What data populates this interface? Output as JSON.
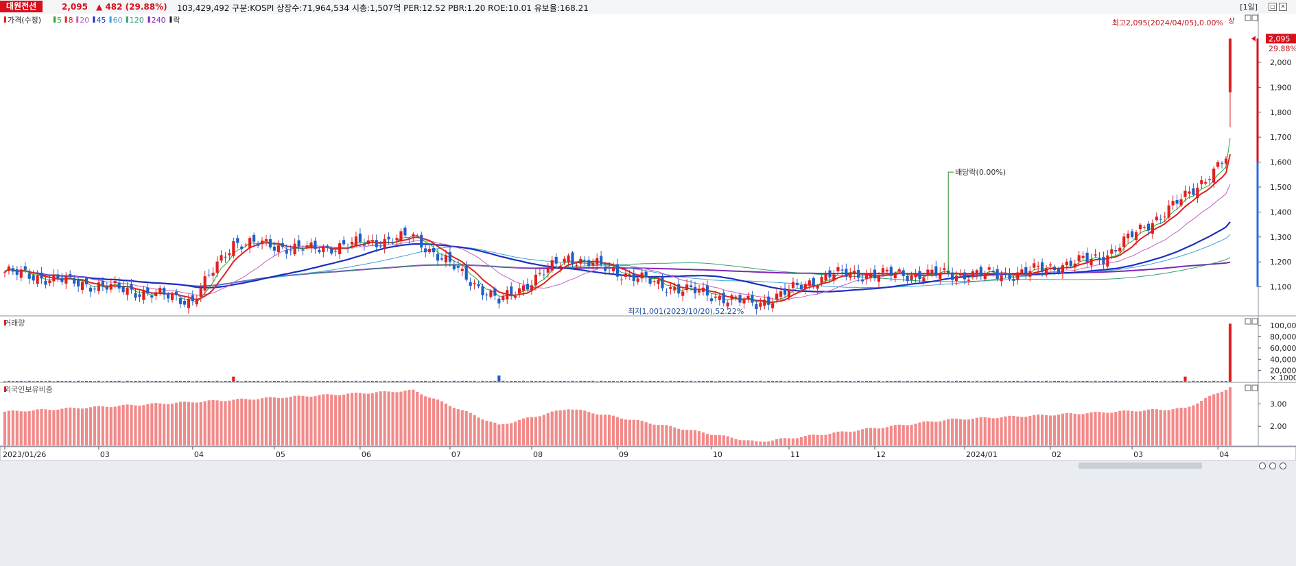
{
  "header": {
    "stock_name": "대원전선",
    "price": "2,095",
    "change": "▲ 482 (29.88%)",
    "info": "103,429,492  구분:KOSPI 상장수:71,964,534 시총:1,507억 PER:12.52 PBR:1.20 ROE:10.01 유보율:168.21",
    "period": "[1일]"
  },
  "colors": {
    "up": "#e02020",
    "down": "#1e5fc9",
    "ma5": "#2aa52a",
    "ma8": "#e02020",
    "ma20": "#c060c0",
    "ma45": "#1a2fbf",
    "ma60": "#3ba0d6",
    "ma120": "#33a070",
    "ma240": "#7b26b8",
    "volume_bar": "#e02020",
    "foreign_bar": "#f28a8a"
  },
  "chart_data": [
    {
      "type": "candlestick",
      "panel": "price",
      "legend": [
        "가격(수정)",
        "5",
        "8",
        "20",
        "45",
        "60",
        "120",
        "240",
        "락"
      ],
      "x_ticks": [
        "2023/01/26",
        "03",
        "04",
        "05",
        "06",
        "07",
        "08",
        "09",
        "10",
        "11",
        "12",
        "2024/01",
        "02",
        "03",
        "04"
      ],
      "y_ticks": [
        "2,000",
        "1,900",
        "1,800",
        "1,700",
        "1,600",
        "1,500",
        "1,400",
        "1,300",
        "1,200",
        "1,100"
      ],
      "ylim": [
        1000,
        2140
      ],
      "last_price_label": "2,095",
      "last_change_label": "29.88%",
      "annotations": {
        "high": "최고2,095(2024/04/05),0.00%",
        "high_tag": "상",
        "low": "최저1,001(2023/10/20),52.22%",
        "dividend": "배당락(0.00%)"
      },
      "key_points": [
        {
          "date": "2023/01/26",
          "close": 1160
        },
        {
          "date": "2023/03/15",
          "close": 1080
        },
        {
          "date": "2023/04/03",
          "close": 1045
        },
        {
          "date": "2023/04/17",
          "close": 1280
        },
        {
          "date": "2023/05/15",
          "close": 1250
        },
        {
          "date": "2023/06/20",
          "close": 1300
        },
        {
          "date": "2023/07/20",
          "close": 1040
        },
        {
          "date": "2023/08/14",
          "close": 1220
        },
        {
          "date": "2023/09/15",
          "close": 1110
        },
        {
          "date": "2023/10/20",
          "close": 1030
        },
        {
          "date": "2023/11/15",
          "close": 1150
        },
        {
          "date": "2023/12/27",
          "close": 1150
        },
        {
          "date": "2024/01/19",
          "close": 1150
        },
        {
          "date": "2024/02/20",
          "close": 1220
        },
        {
          "date": "2024/03/20",
          "close": 1460
        },
        {
          "date": "2024/04/04",
          "close": 1613
        },
        {
          "date": "2024/04/05",
          "open": 1880,
          "high": 2095,
          "low": 1740,
          "close": 2095
        }
      ]
    },
    {
      "type": "bar",
      "panel": "volume",
      "legend": [
        "거래량"
      ],
      "y_ticks": [
        "100,000",
        "80,000",
        "60,000",
        "40,000",
        "20,000"
      ],
      "unit_label": "× 1000",
      "ylim": [
        0,
        110000
      ],
      "peaks": [
        {
          "date": "2023/04/17",
          "value": 9000
        },
        {
          "date": "2023/07/20",
          "value": 11000
        },
        {
          "date": "2024/03/20",
          "value": 9000
        },
        {
          "date": "2024/04/05",
          "value": 103429
        }
      ]
    },
    {
      "type": "bar",
      "panel": "foreign_ownership",
      "legend": [
        "외국인보유비중"
      ],
      "y_ticks": [
        "3.00",
        "2.00"
      ],
      "ylim": [
        1.15,
        3.9
      ],
      "key_points": [
        {
          "date": "2023/01/26",
          "value": 2.65
        },
        {
          "date": "2023/06/20",
          "value": 3.6
        },
        {
          "date": "2023/07/20",
          "value": 2.05
        },
        {
          "date": "2023/08/14",
          "value": 2.8
        },
        {
          "date": "2023/10/20",
          "value": 1.3
        },
        {
          "date": "2023/12/27",
          "value": 2.3
        },
        {
          "date": "2024/03/20",
          "value": 2.8
        },
        {
          "date": "2024/04/05",
          "value": 3.75
        }
      ]
    }
  ]
}
